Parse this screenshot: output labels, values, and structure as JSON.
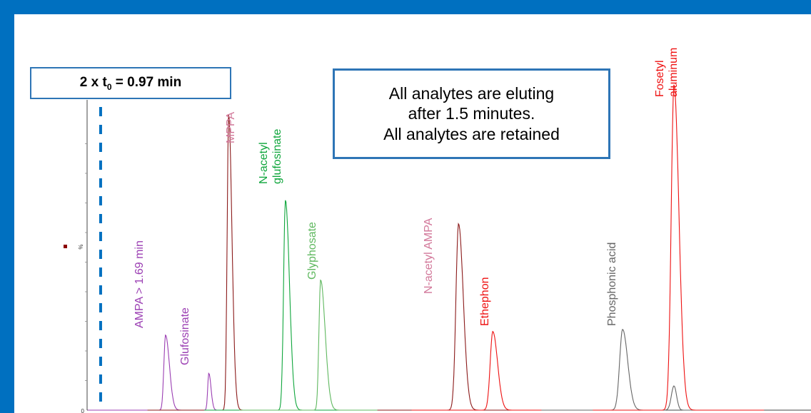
{
  "colors": {
    "frame": "#0070c0",
    "box_border": "#2e75b6",
    "marker": "#0070c0",
    "purple": "#9b3fb3",
    "maroon": "#8b1a1a",
    "green_dark": "#0fa63c",
    "green_light": "#5fb85f",
    "pink": "#d2789a",
    "red": "#ee1111",
    "gray": "#666666",
    "dark": "#222222"
  },
  "t0_box": {
    "prefix": "2 x t",
    "subscript": "0",
    "suffix": " = 0.97 min"
  },
  "note_box": {
    "lines": [
      "All analytes are eluting",
      "after 1.5 minutes.",
      "All analytes are retained"
    ]
  },
  "chart_data": {
    "type": "line",
    "title": "",
    "xlabel": "",
    "ylabel": "%",
    "yticks": [
      "0"
    ],
    "ylim": [
      0,
      100
    ],
    "marker_line": {
      "label": "2 x t0 = 0.97 min",
      "x": 0.97
    },
    "series": [
      {
        "name": "AMPA > 1.69 min",
        "color": "purple",
        "peak_x": 1.69,
        "height": 25.4,
        "width": 0.045,
        "tail": 0.06,
        "label_lines": [
          "AMPA > 1.69 min"
        ]
      },
      {
        "name": "Glufosinate",
        "color": "purple",
        "peak_x": 2.17,
        "height": 12.5,
        "width": 0.03,
        "tail": 0.03,
        "label_lines": [
          "Glufosinate"
        ]
      },
      {
        "name": "MPPA",
        "color": "maroon",
        "peak_x": 2.39,
        "height": 100,
        "width": 0.04,
        "tail": 0.05,
        "label_lines": [
          "MPPA"
        ],
        "label_color": "pink"
      },
      {
        "name": "N-acetyl glufosinate",
        "color": "green_dark",
        "peak_x": 3.02,
        "height": 71,
        "width": 0.05,
        "tail": 0.06,
        "label_lines": [
          "N-acetyl",
          "glufosinate"
        ]
      },
      {
        "name": "Glyphosate",
        "color": "green_light",
        "peak_x": 3.41,
        "height": 44,
        "width": 0.045,
        "tail": 0.08,
        "label_lines": [
          "Glyphosate"
        ]
      },
      {
        "name": "N-acetyl AMPA",
        "color": "maroon",
        "peak_x": 4.94,
        "height": 63,
        "width": 0.07,
        "tail": 0.06,
        "label_lines": [
          "N-acetyl AMPA"
        ],
        "label_color": "pink"
      },
      {
        "name": "Ethephon",
        "color": "red",
        "peak_x": 5.32,
        "height": 26.6,
        "width": 0.07,
        "tail": 0.06,
        "label_lines": [
          "Ethephon"
        ]
      },
      {
        "name": "Phosphonic acid",
        "color": "gray",
        "peak_x": 6.76,
        "height": 27.3,
        "width": 0.08,
        "tail": 0.06,
        "label_lines": [
          "Phosphonic acid"
        ],
        "extra_peak": {
          "x": 7.33,
          "height": 8.2,
          "width": 0.07
        }
      },
      {
        "name": "Fosetyl aluminum",
        "color": "red",
        "peak_x": 7.33,
        "height": 110,
        "width": 0.075,
        "tail": 0.06,
        "label_lines": [
          "Fosetyl",
          "aluminum"
        ]
      }
    ]
  }
}
